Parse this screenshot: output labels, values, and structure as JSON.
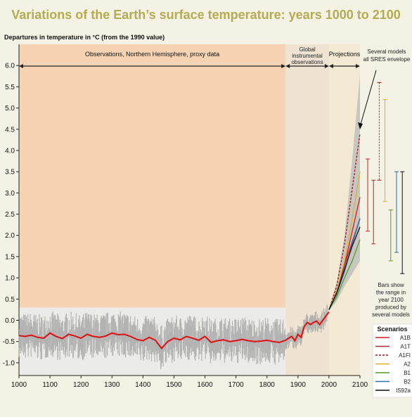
{
  "title": "Variations of the Earth’s surface temperature: years 1000 to 2100",
  "colors": {
    "background": "#f3f2e4",
    "title": "#b5ab52",
    "obs_band": "#f7c89e",
    "instr_band": "#eed8c6",
    "proj_band": "#f3e7cc",
    "proxy_noise": "#a9a9a9",
    "smoothed": "#dd1111",
    "envelope": "#bdbdbd"
  },
  "chart_data": {
    "type": "line",
    "title": "Variations of the Earth’s surface temperature: years 1000 to 2100",
    "ylabel": "Departures in temperature in °C (from the 1990 value)",
    "xlabel": "",
    "xlim": [
      1000,
      2100
    ],
    "ylim": [
      -1.3,
      6.5
    ],
    "x_ticks": [
      "1000",
      "1100",
      "1200",
      "1300",
      "1400",
      "1500",
      "1600",
      "1700",
      "1800",
      "1900",
      "2000",
      "2100"
    ],
    "y_ticks": [
      "6.0",
      "5.5",
      "5.0",
      "4.5",
      "4.0",
      "3.5",
      "3.0",
      "2.5",
      "2.0",
      "1.5",
      "1.0",
      "0.5",
      "0.0",
      "-0.5",
      "-1.0"
    ],
    "period_labels": {
      "observations": "Observations, Northern Hemisphere, proxy data",
      "instrumental": [
        "Global",
        "instrumental",
        "observations"
      ],
      "projections": "Projections"
    },
    "periods": {
      "observations": [
        1000,
        1860
      ],
      "instrumental": [
        1860,
        2000
      ],
      "projections": [
        2000,
        2100
      ]
    },
    "observed_smoothed": {
      "x": [
        1000,
        1020,
        1040,
        1060,
        1080,
        1100,
        1120,
        1140,
        1160,
        1180,
        1200,
        1220,
        1240,
        1260,
        1280,
        1300,
        1320,
        1340,
        1360,
        1380,
        1400,
        1420,
        1440,
        1460,
        1480,
        1500,
        1520,
        1540,
        1560,
        1580,
        1600,
        1620,
        1640,
        1660,
        1680,
        1700,
        1720,
        1740,
        1760,
        1780,
        1800,
        1820,
        1840,
        1860,
        1870,
        1880,
        1890,
        1900,
        1910,
        1920,
        1930,
        1940,
        1950,
        1960,
        1970,
        1980,
        1990,
        2000
      ],
      "y": [
        -0.36,
        -0.38,
        -0.35,
        -0.4,
        -0.42,
        -0.3,
        -0.38,
        -0.43,
        -0.33,
        -0.37,
        -0.42,
        -0.33,
        -0.38,
        -0.4,
        -0.37,
        -0.3,
        -0.34,
        -0.33,
        -0.38,
        -0.45,
        -0.48,
        -0.4,
        -0.47,
        -0.66,
        -0.5,
        -0.42,
        -0.46,
        -0.38,
        -0.42,
        -0.47,
        -0.38,
        -0.52,
        -0.48,
        -0.46,
        -0.5,
        -0.48,
        -0.45,
        -0.48,
        -0.5,
        -0.49,
        -0.47,
        -0.5,
        -0.52,
        -0.47,
        -0.42,
        -0.38,
        -0.48,
        -0.33,
        -0.4,
        -0.15,
        -0.05,
        -0.1,
        -0.05,
        -0.02,
        -0.1,
        0.0,
        0.1,
        0.2
      ]
    },
    "projection_envelope": {
      "x": [
        2000,
        2025,
        2050,
        2075,
        2100
      ],
      "upper": [
        0.28,
        0.9,
        2.0,
        3.8,
        5.8
      ],
      "lower": [
        0.22,
        0.45,
        0.8,
        1.1,
        1.4
      ]
    },
    "series": [
      {
        "name": "A1B",
        "color": "#cc2222",
        "dash": "",
        "x": [
          2000,
          2025,
          2050,
          2075,
          2100
        ],
        "y": [
          0.25,
          0.7,
          1.3,
          2.1,
          2.9
        ]
      },
      {
        "name": "A1T",
        "color": "#a03030",
        "dash": "",
        "x": [
          2000,
          2025,
          2050,
          2075,
          2100
        ],
        "y": [
          0.25,
          0.68,
          1.3,
          1.85,
          2.4
        ]
      },
      {
        "name": "A1FI",
        "color": "#aa1111",
        "dash": "3,2",
        "x": [
          2000,
          2025,
          2050,
          2075,
          2100
        ],
        "y": [
          0.25,
          0.8,
          1.8,
          3.1,
          4.4
        ]
      },
      {
        "name": "A2",
        "color": "#e3b030",
        "dash": "",
        "x": [
          2000,
          2025,
          2050,
          2075,
          2100
        ],
        "y": [
          0.25,
          0.7,
          1.4,
          2.4,
          3.5
        ]
      },
      {
        "name": "B1",
        "color": "#5a9a2a",
        "dash": "",
        "x": [
          2000,
          2025,
          2050,
          2075,
          2100
        ],
        "y": [
          0.25,
          0.55,
          1.0,
          1.4,
          1.9
        ]
      },
      {
        "name": "B2",
        "color": "#2a6fb0",
        "dash": "",
        "x": [
          2000,
          2025,
          2050,
          2075,
          2100
        ],
        "y": [
          0.25,
          0.62,
          1.15,
          1.8,
          2.4
        ]
      },
      {
        "name": "IS92a",
        "color": "#111111",
        "dash": "",
        "x": [
          2000,
          2025,
          2050,
          2075,
          2100
        ],
        "y": [
          0.25,
          0.65,
          1.2,
          1.75,
          2.2
        ]
      }
    ],
    "range_bars": [
      {
        "name": "A1B",
        "color": "#cc2222",
        "low": 2.1,
        "high": 3.8
      },
      {
        "name": "A1T",
        "color": "#a03030",
        "low": 1.8,
        "high": 3.3
      },
      {
        "name": "A1FI",
        "color": "#aa1111",
        "low": 3.3,
        "high": 5.6
      },
      {
        "name": "A2",
        "color": "#e3b030",
        "low": 2.8,
        "high": 5.2
      },
      {
        "name": "B1",
        "color": "#5a9a2a",
        "low": 1.4,
        "high": 2.6
      },
      {
        "name": "B2",
        "color": "#2a6fb0",
        "low": 1.6,
        "high": 3.5
      },
      {
        "name": "IS92a",
        "color": "#111111",
        "low": 1.1,
        "high": 3.5
      }
    ],
    "annotations": {
      "envelope_note": [
        "Several models",
        "all SRES envelope"
      ],
      "bars_note": [
        "Bars show",
        "the range in",
        "year 2100",
        "produced by",
        "several models"
      ],
      "legend_title": "Scenarios"
    },
    "legend": [
      "A1B",
      "A1T",
      "A1FI",
      "A2",
      "B1",
      "B2",
      "IS92a"
    ],
    "legend_position": "bottom-right",
    "grid": false
  }
}
